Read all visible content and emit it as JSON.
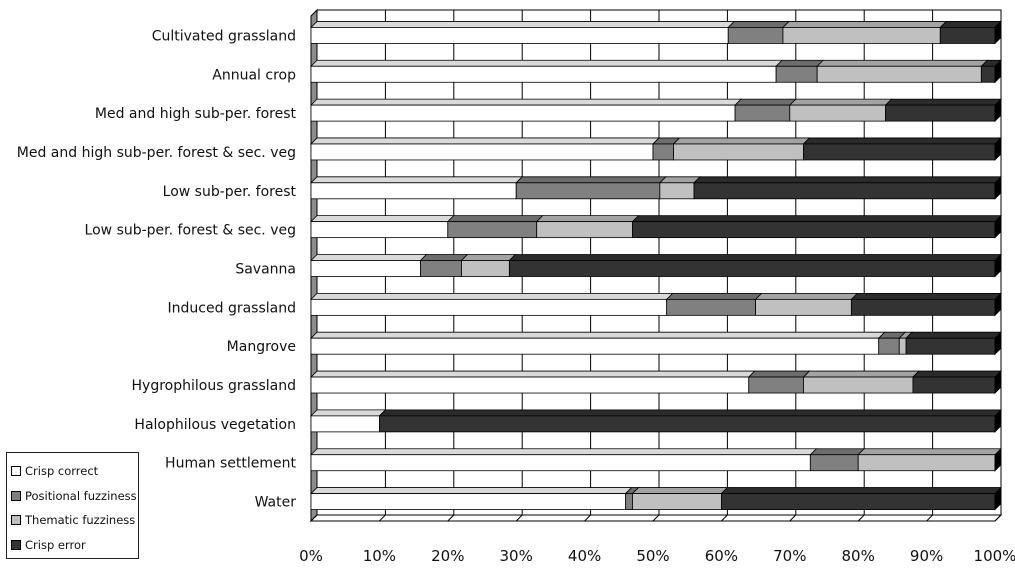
{
  "chart_data": {
    "type": "bar",
    "orientation": "horizontal",
    "stacked": "percent",
    "categories": [
      "Cultivated grassland",
      "Annual crop",
      "Med and high sub-per. forest",
      "Med and high sub-per. forest & sec. veg",
      "Low sub-per. forest ",
      "Low sub-per. forest & sec. veg",
      "Savanna",
      "Induced grassland",
      "Mangrove",
      "Hygrophilous grassland",
      "Halophilous vegetation",
      "Human settlement",
      "Water"
    ],
    "series": [
      {
        "name": "Crisp correct",
        "color": "#ffffff",
        "values": [
          61,
          68,
          62,
          50,
          30,
          20,
          16,
          52,
          83,
          64,
          10,
          73,
          46
        ]
      },
      {
        "name": "Positional fuzziness",
        "color": "#808080",
        "values": [
          8,
          6,
          8,
          3,
          21,
          13,
          6,
          13,
          3,
          8,
          0,
          7,
          1
        ]
      },
      {
        "name": "Thematic fuzziness",
        "color": "#c0c0c0",
        "values": [
          23,
          24,
          14,
          19,
          5,
          14,
          7,
          14,
          1,
          16,
          0,
          20,
          13
        ]
      },
      {
        "name": "Crisp error",
        "color": "#333333",
        "values": [
          8,
          2,
          16,
          28,
          44,
          53,
          71,
          21,
          13,
          12,
          90,
          0,
          40
        ]
      }
    ],
    "x_ticks": [
      "0%",
      "10%",
      "20%",
      "30%",
      "40%",
      "50%",
      "60%",
      "70%",
      "80%",
      "90%",
      "100%"
    ],
    "xlim": [
      0,
      100
    ],
    "grid": true,
    "legend_position": "bottom-left"
  }
}
